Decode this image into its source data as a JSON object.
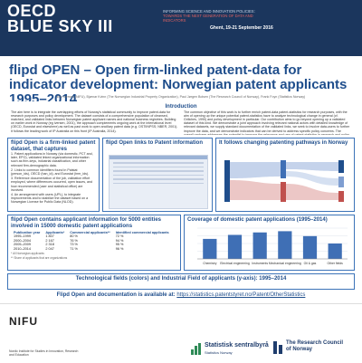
{
  "header": {
    "logo_line1": "OECD",
    "logo_line2": "BLUE SKY III",
    "tagline_1": "INFORMING SCIENCE AND INNOVATION POLICIES:",
    "tagline_2": "TOWARDS THE NEXT GENERATION OF DATA AND INDICATORS",
    "venue": "Ghent, 19-21 September 2016",
    "bg_color": "#1b365d"
  },
  "title": "flipd OPEN – Open firm-linked patent-data for indicator development: Norwegian patent applicants 1995–2014",
  "authors": "Eric Iversen (NIFU), Bjørnar Kvinn (The Norwegian Industrial Property Organization), Paul Jørgen Bolsen (The Research Council of Norway), Frank Foyn (Statistics Norway)",
  "introduction": {
    "heading": "Introduction",
    "col1": "The aim here is to integrate the overlapping efforts of Norway’s statistical community to improve patent-data for research purposes and policy development. The dataset consists of a comprehensive population of cleansed, matched, and validated links between Norwegian patent applicant names and national business registries. Building on earlier work in Norway (eg Iversen, 2001), the approach complements ongoing work at the international level (OECD, Eurostat and elsewhere) as well as past work to open ancillary patent data (e.g. OSTIINPSS; NBER, 2001). It follows the leading work of IP Australia on this front (IP Australia, 2014).",
    "col2": "The common objective of this work is to further enrich patent-data patent-statistics for research purposes, with the aim of opening up the unique potential patent-statistics have to analyze technological change in general (cf. Griliches, 1990) and policy development in particular. Our contribution aims to go beyond opening up a validated dataset of this kind. We demonstrate a joint approach involving relevant national actors with detailed knowledge of relevant datasets, we supply standard documentation of the validated links, we seek to involve data-users to further improve the data, and we demonstrate indicators that can be derived to address specific policy concerns. The overall package addresses the potential to improve the relevance and use of patent statistics in research and policy analysis."
  },
  "panel_firm_linked": {
    "heading": "flipd Open is a firm-linked patent dataset, that captures",
    "items": [
      "1. Patent applications in Norway (via domestic, PCT and, later, EPO), validated linked organizational information such as firm-keys, industrial classification, and other relevant firm-demographic data.",
      "2. Links to common identifiers found in Patstat (person_ids), OECD (han_id), and Eurostat (hrm_ids).",
      "3. Reference documentation of the job, validation effort employed, where differences occurred, open issues, and how recommended (user and statistical office) are involved.",
      "4. An arrangement with users (UPL), to integrate improvements and to stabilize the dataset based on a Norwegian License for Public Data (NLOD)."
    ]
  },
  "panel_links": {
    "heading": "flipd Open links to Patent information"
  },
  "panel_pathways": {
    "heading": "It follows changing patenting pathways in Norway"
  },
  "panel_entities": {
    "heading": "flipd Open contains applicant information for 5000 entities involved in 15000 domestic patent applications",
    "columns": [
      "Publication year",
      "Applicants*",
      "Commercial applicants**",
      "Identified commercial applicants"
    ],
    "rows": [
      [
        "1995–1999",
        "1 807",
        "80 %",
        "72 %"
      ],
      [
        "2000–2004",
        "2 167",
        "76 %",
        "94 %"
      ],
      [
        "2005–2009",
        "2 318",
        "73 %",
        "95 %"
      ],
      [
        "2010–2014",
        "2 047",
        "71 %",
        "96 %"
      ]
    ],
    "notes": [
      "* All Norwegian applicants",
      "** Share of applicants that are organizations"
    ]
  },
  "chart_data": {
    "type": "bar",
    "title": "Coverage of domestic patent applications (1995–2014)",
    "categories": [
      "Chemistry",
      "Electrical engineering",
      "Instruments",
      "Mechanical engineering",
      "Oil & gas",
      "Other fields"
    ],
    "values": [
      65,
      78,
      86,
      90,
      74,
      50
    ],
    "ylim": [
      0,
      100
    ],
    "bar_color": "#3f6fb5",
    "grid": true
  },
  "panel_technology": {
    "heading": "Technological fields (colors) and Industrial Field of applicants (y-axis): 1995–2014"
  },
  "footer": {
    "text": "Flipd Open and documentation is available at:",
    "link": "https://statistics.patentstyret.no/Patent/OtherStatistics"
  },
  "logos": {
    "nifu": "NIFU",
    "nifu_sub": "Nordic Institute for Studies in Innovation, Research and Education",
    "ssb_name": "Statistisk sentralbyrå",
    "ssb_en": "Statistics Norway",
    "rcn_line1": "The Research Council",
    "rcn_line2": "of Norway"
  }
}
